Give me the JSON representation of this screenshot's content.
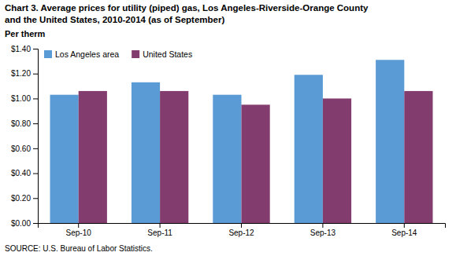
{
  "chart_data": {
    "type": "bar",
    "title": "Chart 3. Average prices for utility (piped) gas, Los Angeles-Riverside-Orange County",
    "subtitle": "and the United States, 2010-2014 (as of September)",
    "ylabel": "Per therm",
    "source": "SOURCE: U.S. Bureau of Labor Statistics.",
    "categories": [
      "Sep-10",
      "Sep-11",
      "Sep-12",
      "Sep-13",
      "Sep-14"
    ],
    "series": [
      {
        "name": "Los Angeles area",
        "color": "#5B9BD5",
        "values": [
          1.03,
          1.13,
          1.03,
          1.19,
          1.31
        ]
      },
      {
        "name": "United States",
        "color": "#833C6E",
        "values": [
          1.06,
          1.06,
          0.95,
          1.0,
          1.06
        ]
      }
    ],
    "ylim": [
      0,
      1.4
    ],
    "yticks": [
      {
        "value": 0.0,
        "label": "$0.00"
      },
      {
        "value": 0.2,
        "label": "$0.20"
      },
      {
        "value": 0.4,
        "label": "$0.40"
      },
      {
        "value": 0.6,
        "label": "$0.60"
      },
      {
        "value": 0.8,
        "label": "$0.80"
      },
      {
        "value": 1.0,
        "label": "$1.00"
      },
      {
        "value": 1.2,
        "label": "$1.20"
      },
      {
        "value": 1.4,
        "label": "$1.40"
      }
    ],
    "grid": false,
    "legend": "upper left"
  }
}
